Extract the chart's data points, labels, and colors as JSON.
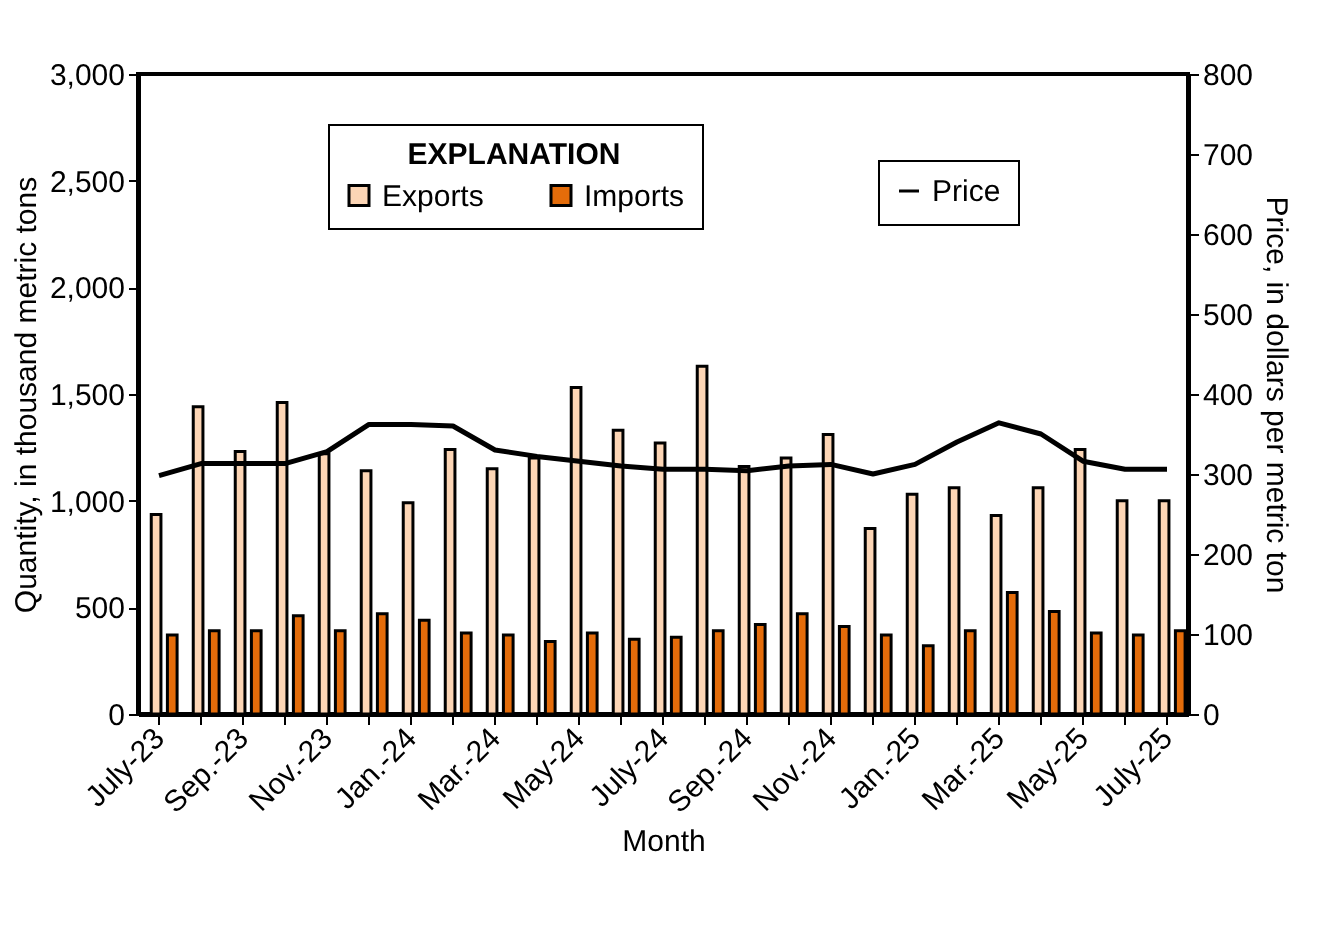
{
  "chart_data": {
    "type": "bar",
    "xlabel": "Month",
    "ylabel": "Quantity, in thousand metric tons",
    "y2label": "Price, in dollars per metric ton",
    "legend_title": "EXPLANATION",
    "categories": [
      "July-23",
      null,
      "Sep.-23",
      null,
      "Nov.-23",
      null,
      "Jan.-24",
      null,
      "Mar.-24",
      null,
      "May-24",
      null,
      "July-24",
      null,
      "Sep.-24",
      null,
      "Nov.-24",
      null,
      "Jan.-25",
      null,
      "Mar.-25",
      null,
      "May-25",
      null,
      "July-25"
    ],
    "series": [
      {
        "name": "Exports",
        "color": "#fcd5b5",
        "values": [
          935,
          1440,
          1230,
          1460,
          1220,
          1140,
          990,
          1240,
          1150,
          1200,
          1530,
          1330,
          1270,
          1630,
          1160,
          1200,
          1310,
          870,
          1030,
          1060,
          930,
          1060,
          1240,
          1000,
          1000
        ]
      },
      {
        "name": "Imports",
        "color": "#e46c0a",
        "values": [
          370,
          390,
          390,
          460,
          390,
          470,
          440,
          380,
          370,
          340,
          380,
          350,
          360,
          390,
          420,
          470,
          410,
          370,
          320,
          390,
          570,
          480,
          380,
          370,
          390
        ]
      },
      {
        "name": "Price",
        "type": "line",
        "axis": "y2",
        "color": "#000000",
        "values": [
          298,
          313,
          313,
          313,
          328,
          362,
          362,
          360,
          330,
          322,
          316,
          310,
          306,
          306,
          304,
          310,
          312,
          300,
          312,
          340,
          364,
          350,
          316,
          306,
          306
        ]
      }
    ],
    "ylim": [
      0,
      3000
    ],
    "yticks": [
      0,
      500,
      {
        "value": 1000,
        "label": "1,000"
      },
      {
        "value": 1500,
        "label": "1,500"
      },
      {
        "value": 2000,
        "label": "2,000"
      },
      {
        "value": 2500,
        "label": "2,500"
      },
      {
        "value": 3000,
        "label": "3,000"
      }
    ],
    "y2lim": [
      0,
      800
    ],
    "y2ticks": [
      0,
      100,
      200,
      300,
      400,
      500,
      600,
      700,
      800
    ],
    "grid": false,
    "legend": "top",
    "marker": "none",
    "line_style": "solid"
  }
}
